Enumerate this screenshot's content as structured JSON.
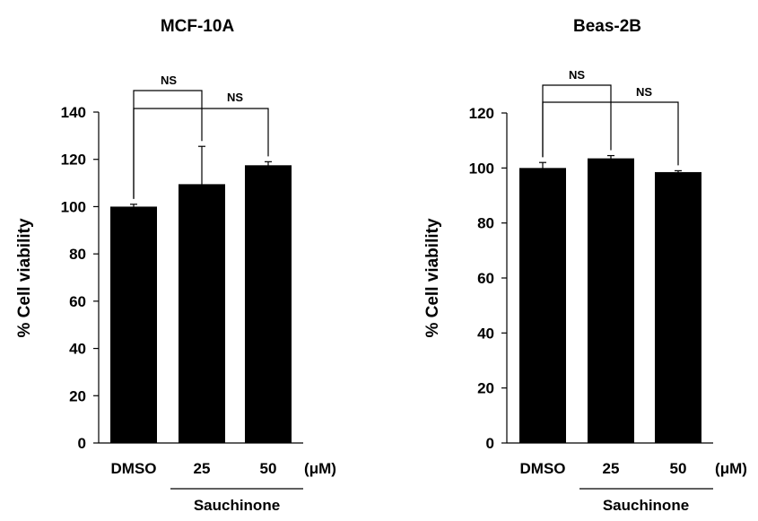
{
  "chart_data": [
    {
      "type": "bar",
      "title": "MCF-10A",
      "ylabel": "% Cell viability",
      "ylim": [
        0,
        140
      ],
      "yticks": [
        "0",
        "20",
        "40",
        "60",
        "80",
        "100",
        "120",
        "140"
      ],
      "categories": [
        "DMSO",
        "25",
        "50"
      ],
      "unit_label": "(μM)",
      "group_label": "Sauchinone",
      "values": [
        100,
        109.5,
        117.5
      ],
      "errors": [
        1,
        16,
        1.5
      ],
      "significance": [
        {
          "from": 0,
          "to": 1,
          "label": "NS"
        },
        {
          "from": 0,
          "to": 2,
          "label": "NS"
        }
      ],
      "bar_color": "#000000"
    },
    {
      "type": "bar",
      "title": "Beas-2B",
      "ylabel": "% Cell viability",
      "ylim": [
        0,
        120
      ],
      "yticks": [
        "0",
        "20",
        "40",
        "60",
        "80",
        "100",
        "120"
      ],
      "categories": [
        "DMSO",
        "25",
        "50"
      ],
      "unit_label": "(μM)",
      "group_label": "Sauchinone",
      "values": [
        100,
        103.5,
        98.5
      ],
      "errors": [
        2,
        1,
        0.5
      ],
      "significance": [
        {
          "from": 0,
          "to": 1,
          "label": "NS"
        },
        {
          "from": 0,
          "to": 2,
          "label": "NS"
        }
      ],
      "bar_color": "#000000"
    }
  ]
}
